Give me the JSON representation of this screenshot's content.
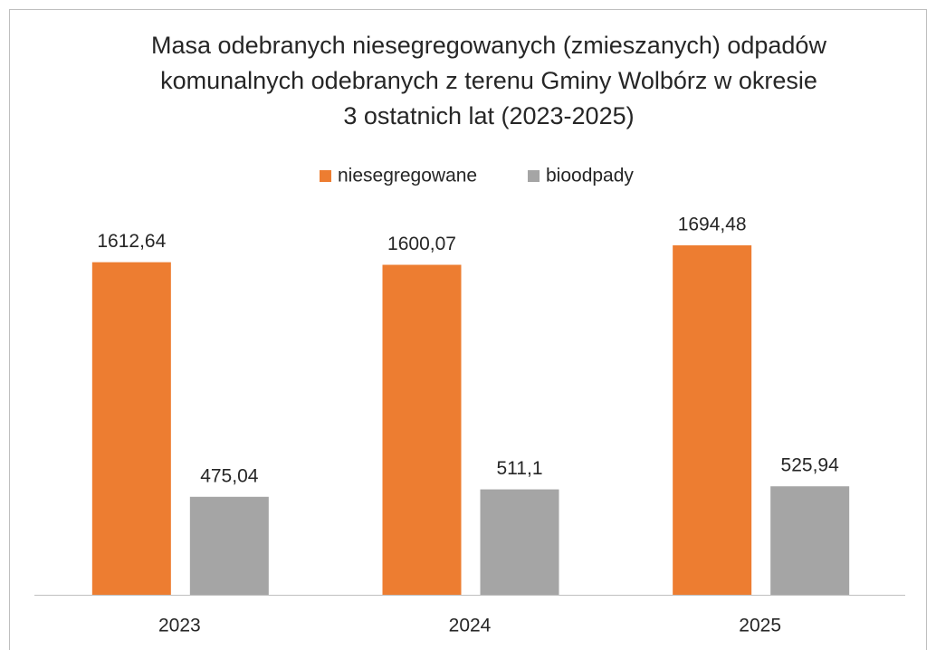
{
  "chart_data": {
    "type": "bar",
    "title": [
      "Masa odebranych niesegregowanych (zmieszanych) odpadów",
      "komunalnych odebranych z terenu Gminy Wolbórz w okresie",
      "3 ostatnich lat (2023-2025)"
    ],
    "categories": [
      "2023",
      "2024",
      "2025"
    ],
    "series": [
      {
        "name": "niesegregowane",
        "color": "#ed7d31",
        "values": [
          1612.64,
          1600.07,
          1694.48
        ],
        "value_labels": [
          "1612,64",
          "1600,07",
          "1694,48"
        ]
      },
      {
        "name": "bioodpady",
        "color": "#a5a5a5",
        "values": [
          475.04,
          511.1,
          525.94
        ],
        "value_labels": [
          "475,04",
          "511,1",
          "525,94"
        ]
      }
    ],
    "legend": "top"
  }
}
